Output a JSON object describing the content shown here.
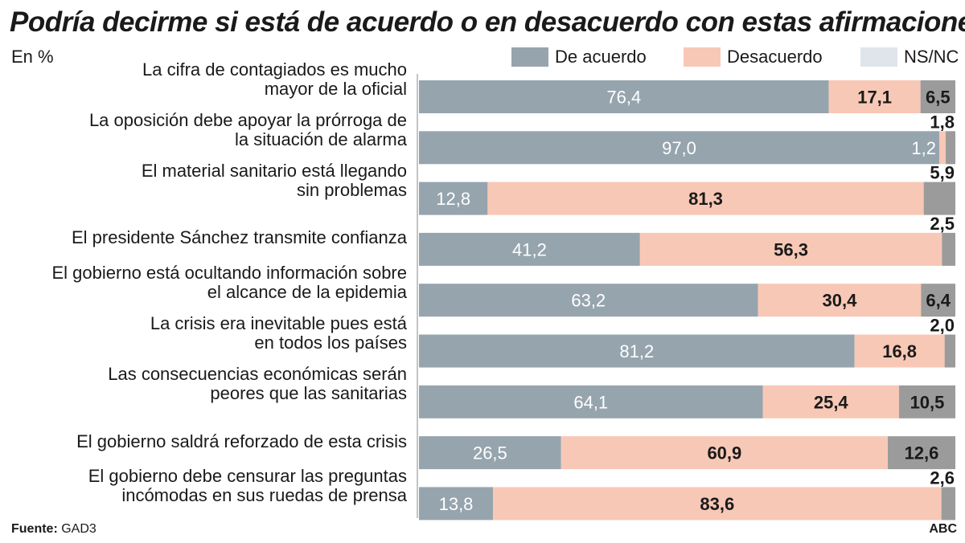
{
  "title": "Podría decirme si está de acuerdo o en desacuerdo con estas afirmaciones",
  "unit_label": "En %",
  "legend": [
    {
      "label": "De acuerdo",
      "color": "#96a4ae"
    },
    {
      "label": "Desacuerdo",
      "color": "#f8c8b6"
    },
    {
      "label": "NS/NC",
      "color": "#e0e5ea"
    }
  ],
  "chart_data": {
    "type": "bar",
    "orientation": "horizontal",
    "stacked": true,
    "title": "Podría decirme si está de acuerdo o en desacuerdo con estas afirmaciones",
    "ylabel": "En %",
    "xlim": [
      0,
      100
    ],
    "categories": [
      "La cifra de contagiados es mucho mayor de la oficial",
      "La oposición debe apoyar la prórroga de la situación de alarma",
      "El material sanitario está llegando sin problemas",
      "El presidente Sánchez transmite confianza",
      "El gobierno está ocultando información sobre el alcance de la epidemia",
      "La crisis era inevitable pues está en todos los países",
      "Las consecuencias económicas serán peores que las sanitarias",
      "El gobierno saldrá reforzado de esta crisis",
      "El gobierno debe censurar las preguntas incómodas en sus ruedas de prensa"
    ],
    "label_lines": [
      [
        "La cifra de contagiados es mucho",
        "mayor de la oficial"
      ],
      [
        "La oposición debe apoyar la prórroga de",
        "la situación de alarma"
      ],
      [
        "El material sanitario está llegando",
        "sin problemas"
      ],
      [
        "El presidente Sánchez transmite confianza"
      ],
      [
        "El gobierno está ocultando información sobre",
        "el alcance de la epidemia"
      ],
      [
        "La crisis era inevitable pues está",
        "en todos los países"
      ],
      [
        "Las consecuencias económicas serán",
        "peores que las sanitarias"
      ],
      [
        "El gobierno saldrá reforzado de esta crisis"
      ],
      [
        "El gobierno debe censurar las preguntas",
        "incómodas en sus ruedas de prensa"
      ]
    ],
    "series": [
      {
        "name": "De acuerdo",
        "color": "#96a4ae",
        "values": [
          76.4,
          97.0,
          12.8,
          41.2,
          63.2,
          81.2,
          64.1,
          26.5,
          13.8
        ],
        "labels": [
          "76,4",
          "97,0",
          "12,8",
          "41,2",
          "63,2",
          "81,2",
          "64,1",
          "26,5",
          "13,8"
        ]
      },
      {
        "name": "Desacuerdo",
        "color": "#f8c8b6",
        "values": [
          17.1,
          1.2,
          81.3,
          56.3,
          30.4,
          16.8,
          25.4,
          60.9,
          83.6
        ],
        "labels": [
          "17,1",
          "1,2",
          "81,3",
          "56,3",
          "30,4",
          "16,8",
          "25,4",
          "60,9",
          "83,6"
        ]
      },
      {
        "name": "NS/NC",
        "color": "#9b9b9b",
        "values": [
          6.5,
          1.8,
          5.9,
          2.5,
          6.4,
          2.0,
          10.5,
          12.6,
          2.6
        ],
        "labels": [
          "6,5",
          "1,8",
          "5,9",
          "2,5",
          "6,4",
          "2,0",
          "10,5",
          "12,6",
          "2,6"
        ]
      }
    ]
  },
  "footer": {
    "source_label": "Fuente:",
    "source_value": "GAD3",
    "brand": "ABC"
  }
}
